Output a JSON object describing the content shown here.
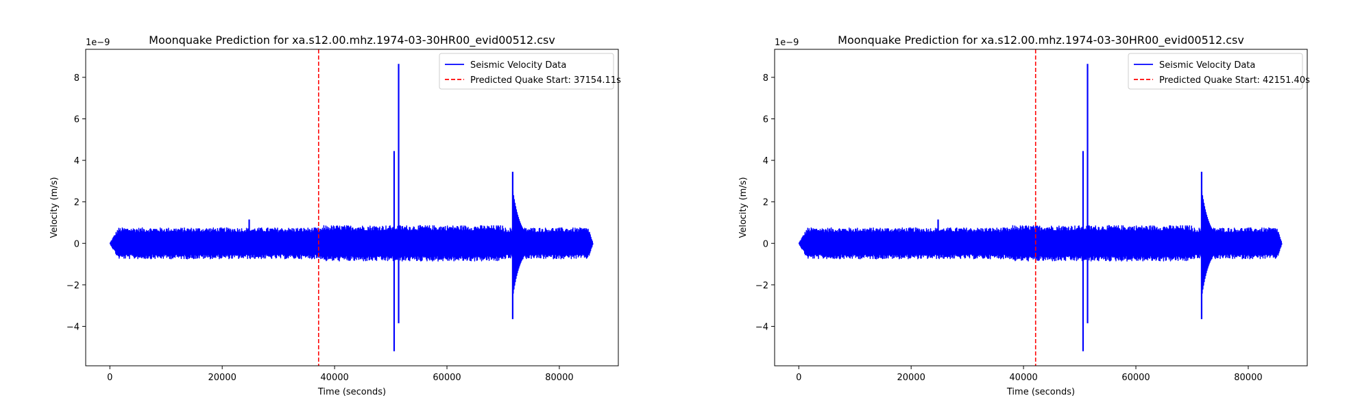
{
  "chart_data": [
    {
      "type": "line",
      "title": "Moonquake Prediction for xa.s12.00.mhz.1974-03-30HR00_evid00512.csv",
      "xlabel": "Time (seconds)",
      "ylabel": "Velocity (m/s)",
      "y_offset_label": "1e−9",
      "y_scale_exponent": -9,
      "xlim": [
        -4300,
        90500
      ],
      "ylim": [
        -5.9,
        9.35
      ],
      "x_ticks": [
        0,
        20000,
        40000,
        60000,
        80000
      ],
      "x_tick_labels": [
        "0",
        "20000",
        "40000",
        "60000",
        "80000"
      ],
      "y_ticks": [
        -4,
        -2,
        0,
        2,
        4,
        6,
        8
      ],
      "y_tick_labels": [
        "−4",
        "−2",
        "0",
        "2",
        "4",
        "6",
        "8"
      ],
      "grid": false,
      "legend_position": "top-right",
      "series": [
        {
          "name": "Seismic Velocity Data",
          "color": "#0000ff",
          "line_style": "solid",
          "x_range": [
            0,
            86000
          ],
          "baseline_amplitude": 0.65,
          "events": [
            {
              "x": 24800,
              "max": 1.15,
              "min": -0.6
            },
            {
              "x": 50600,
              "max": 4.45,
              "min": -5.2
            },
            {
              "x": 51400,
              "max": 8.65,
              "min": -3.85
            },
            {
              "x": 71700,
              "max": 3.45,
              "min": -3.65
            }
          ]
        },
        {
          "name": "Predicted Quake Start: 37154.11s",
          "color": "#ff0000",
          "line_style": "dashed",
          "x_value": 37154.11
        }
      ]
    },
    {
      "type": "line",
      "title": "Moonquake Prediction for xa.s12.00.mhz.1974-03-30HR00_evid00512.csv",
      "xlabel": "Time (seconds)",
      "ylabel": "Velocity (m/s)",
      "y_offset_label": "1e−9",
      "y_scale_exponent": -9,
      "xlim": [
        -4300,
        90500
      ],
      "ylim": [
        -5.9,
        9.35
      ],
      "x_ticks": [
        0,
        20000,
        40000,
        60000,
        80000
      ],
      "x_tick_labels": [
        "0",
        "20000",
        "40000",
        "60000",
        "80000"
      ],
      "y_ticks": [
        -4,
        -2,
        0,
        2,
        4,
        6,
        8
      ],
      "y_tick_labels": [
        "−4",
        "−2",
        "0",
        "2",
        "4",
        "6",
        "8"
      ],
      "grid": false,
      "legend_position": "top-right",
      "series": [
        {
          "name": "Seismic Velocity Data",
          "color": "#0000ff",
          "line_style": "solid",
          "x_range": [
            0,
            86000
          ],
          "baseline_amplitude": 0.65,
          "events": [
            {
              "x": 24800,
              "max": 1.15,
              "min": -0.6
            },
            {
              "x": 50600,
              "max": 4.45,
              "min": -5.2
            },
            {
              "x": 51400,
              "max": 8.65,
              "min": -3.85
            },
            {
              "x": 71700,
              "max": 3.45,
              "min": -3.65
            }
          ]
        },
        {
          "name": "Predicted Quake Start: 42151.40s",
          "color": "#ff0000",
          "line_style": "dashed",
          "x_value": 42151.4
        }
      ]
    }
  ]
}
